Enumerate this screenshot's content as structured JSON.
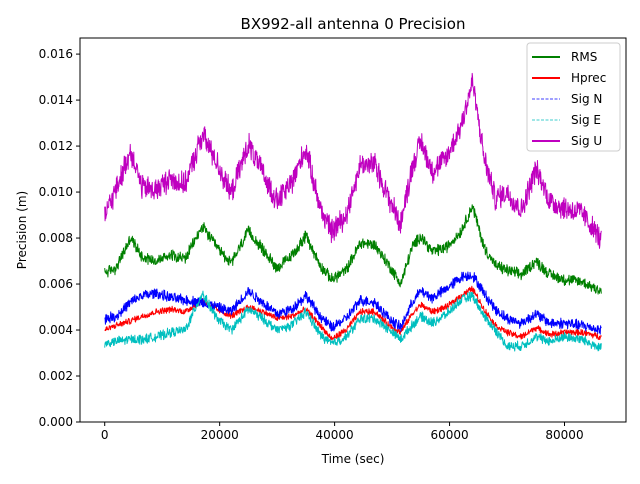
{
  "chart_data": {
    "type": "line",
    "title": "BX992-all antenna 0 Precision",
    "xlabel": "Time (sec)",
    "ylabel": "Precision (m)",
    "xlim": [
      -4300,
      90700
    ],
    "ylim": [
      0.0,
      0.0167
    ],
    "x_ticks": [
      0,
      20000,
      40000,
      60000,
      80000
    ],
    "x_tick_labels": [
      "0",
      "20000",
      "40000",
      "60000",
      "80000"
    ],
    "y_ticks": [
      0.0,
      0.002,
      0.004,
      0.006,
      0.008,
      0.01,
      0.012,
      0.014,
      0.016
    ],
    "y_tick_labels": [
      "0.000",
      "0.002",
      "0.004",
      "0.006",
      "0.008",
      "0.010",
      "0.012",
      "0.014",
      "0.016"
    ],
    "grid": false,
    "legend_position": "top-right",
    "series": [
      {
        "name": "RMS",
        "color": "#008000",
        "style": "solid",
        "noise": 0.00022,
        "x": [
          0,
          2000,
          4500,
          6500,
          9000,
          11500,
          14000,
          17000,
          19500,
          22000,
          25000,
          27500,
          30000,
          32500,
          35000,
          37500,
          39500,
          42000,
          44500,
          47000,
          49500,
          51500,
          53500,
          55000,
          57000,
          59500,
          62000,
          64000,
          66000,
          68000,
          70000,
          72500,
          75000,
          77500,
          80000,
          83000,
          86400
        ],
        "values": [
          0.0065,
          0.0067,
          0.008,
          0.0072,
          0.007,
          0.0073,
          0.0071,
          0.0085,
          0.0076,
          0.0069,
          0.0083,
          0.0075,
          0.0067,
          0.0072,
          0.0081,
          0.0068,
          0.0062,
          0.0066,
          0.0078,
          0.0077,
          0.0068,
          0.006,
          0.0076,
          0.0081,
          0.0074,
          0.0076,
          0.0083,
          0.0094,
          0.0076,
          0.0068,
          0.0066,
          0.0064,
          0.007,
          0.0064,
          0.0062,
          0.0061,
          0.0057
        ]
      },
      {
        "name": "Hprec",
        "color": "#ff0000",
        "style": "solid",
        "noise": 0.00012,
        "x": [
          0,
          2000,
          4500,
          6500,
          9000,
          11500,
          14000,
          17000,
          19500,
          22000,
          25000,
          27500,
          30000,
          32500,
          35000,
          37500,
          39500,
          42000,
          44500,
          47000,
          49500,
          51500,
          53500,
          55000,
          57000,
          59500,
          62000,
          64000,
          66000,
          68000,
          70000,
          72500,
          75000,
          77500,
          80000,
          83000,
          86400
        ],
        "values": [
          0.004,
          0.0042,
          0.0044,
          0.0046,
          0.0048,
          0.0049,
          0.0048,
          0.0053,
          0.0049,
          0.0046,
          0.005,
          0.0048,
          0.0045,
          0.0046,
          0.0049,
          0.0042,
          0.0036,
          0.004,
          0.0048,
          0.0048,
          0.0042,
          0.0039,
          0.0047,
          0.0051,
          0.0048,
          0.005,
          0.0055,
          0.0058,
          0.0049,
          0.0042,
          0.0039,
          0.0037,
          0.0041,
          0.0038,
          0.0039,
          0.0039,
          0.0037
        ]
      },
      {
        "name": "Sig N",
        "color": "#0000ff",
        "style": "dashed",
        "noise": 0.0002,
        "x": [
          0,
          2000,
          4500,
          6500,
          9000,
          11500,
          14000,
          17000,
          19500,
          22000,
          25000,
          27500,
          30000,
          32500,
          35000,
          37500,
          39500,
          42000,
          44500,
          47000,
          49500,
          51500,
          53500,
          55000,
          57000,
          59500,
          62000,
          64000,
          66000,
          68000,
          70000,
          72500,
          75000,
          77500,
          80000,
          83000,
          86400
        ],
        "values": [
          0.0045,
          0.0046,
          0.0052,
          0.0055,
          0.0056,
          0.0054,
          0.0053,
          0.0052,
          0.005,
          0.0048,
          0.0057,
          0.0052,
          0.0047,
          0.0049,
          0.0055,
          0.0046,
          0.0041,
          0.0045,
          0.0053,
          0.0052,
          0.0045,
          0.0041,
          0.0052,
          0.0057,
          0.0054,
          0.0058,
          0.0063,
          0.0064,
          0.0056,
          0.0049,
          0.0045,
          0.0043,
          0.0047,
          0.0043,
          0.0043,
          0.0042,
          0.004
        ]
      },
      {
        "name": "Sig E",
        "color": "#00bfbf",
        "style": "dashed",
        "noise": 0.00018,
        "x": [
          0,
          2000,
          4500,
          6500,
          9000,
          11500,
          14000,
          17000,
          19500,
          22000,
          25000,
          27500,
          30000,
          32500,
          35000,
          37500,
          39500,
          42000,
          44500,
          47000,
          49500,
          51500,
          53500,
          55000,
          57000,
          59500,
          62000,
          64000,
          66000,
          68000,
          70000,
          72500,
          75000,
          77500,
          80000,
          83000,
          86400
        ],
        "values": [
          0.0034,
          0.0035,
          0.0036,
          0.0036,
          0.0037,
          0.0039,
          0.004,
          0.0056,
          0.0045,
          0.004,
          0.0049,
          0.0045,
          0.004,
          0.0042,
          0.0048,
          0.0038,
          0.0034,
          0.0037,
          0.0045,
          0.0045,
          0.004,
          0.0036,
          0.0042,
          0.0046,
          0.0043,
          0.0047,
          0.0053,
          0.0055,
          0.0046,
          0.004,
          0.0033,
          0.0033,
          0.0037,
          0.0035,
          0.0037,
          0.0036,
          0.0032
        ]
      },
      {
        "name": "Sig U",
        "color": "#bf00bf",
        "style": "solid",
        "noise": 0.00045,
        "x": [
          0,
          2000,
          4500,
          6500,
          9000,
          11500,
          14000,
          17000,
          19500,
          22000,
          25000,
          27500,
          30000,
          32500,
          35000,
          37500,
          39500,
          42000,
          44500,
          47000,
          49500,
          51500,
          53500,
          55000,
          57000,
          59500,
          62000,
          64000,
          66000,
          68000,
          70000,
          72500,
          75000,
          77500,
          80000,
          83000,
          86400
        ],
        "values": [
          0.009,
          0.0101,
          0.0118,
          0.0102,
          0.0101,
          0.0106,
          0.0103,
          0.0125,
          0.0113,
          0.0099,
          0.0121,
          0.0108,
          0.0096,
          0.0104,
          0.0119,
          0.0093,
          0.0083,
          0.009,
          0.0112,
          0.0112,
          0.0097,
          0.0086,
          0.0111,
          0.0122,
          0.0109,
          0.0115,
          0.0129,
          0.0148,
          0.0115,
          0.0097,
          0.01,
          0.0092,
          0.011,
          0.0096,
          0.0093,
          0.0091,
          0.0079
        ]
      }
    ]
  }
}
